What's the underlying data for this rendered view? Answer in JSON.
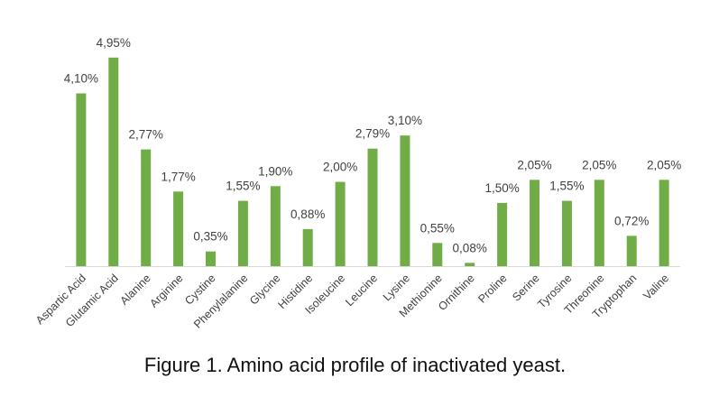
{
  "caption": "Figure 1. Amino acid profile of inactivated yeast.",
  "colors": {
    "bar": "#70ad47",
    "axis": "#d9d9d9",
    "text": "#404040"
  },
  "chart_data": {
    "type": "bar",
    "categories": [
      "Aspartic Acid",
      "Glutamic Acid",
      "Alanine",
      "Arginine",
      "Cystine",
      "Phenylalanine",
      "Glycine",
      "Histidine",
      "Isoleucine",
      "Leucine",
      "Lysine",
      "Methionine",
      "Ornithine",
      "Proline",
      "Serine",
      "Tyrosine",
      "Threonine",
      "Tryptophan",
      "Valine"
    ],
    "values": [
      4.1,
      4.95,
      2.77,
      1.77,
      0.35,
      1.55,
      1.9,
      0.88,
      2.0,
      2.79,
      3.1,
      0.55,
      0.08,
      1.5,
      2.05,
      1.55,
      2.05,
      0.72,
      2.05
    ],
    "data_labels": [
      "4,10%",
      "4,95%",
      "2,77%",
      "1,77%",
      "0,35%",
      "1,55%",
      "1,90%",
      "0,88%",
      "2,00%",
      "2,79%",
      "3,10%",
      "0,55%",
      "0,08%",
      "1,50%",
      "2,05%",
      "1,55%",
      "2,05%",
      "0,72%",
      "2,05%"
    ],
    "title": "",
    "xlabel": "",
    "ylabel": "",
    "ylim": [
      0,
      5
    ],
    "grid": false,
    "legend": "none"
  }
}
